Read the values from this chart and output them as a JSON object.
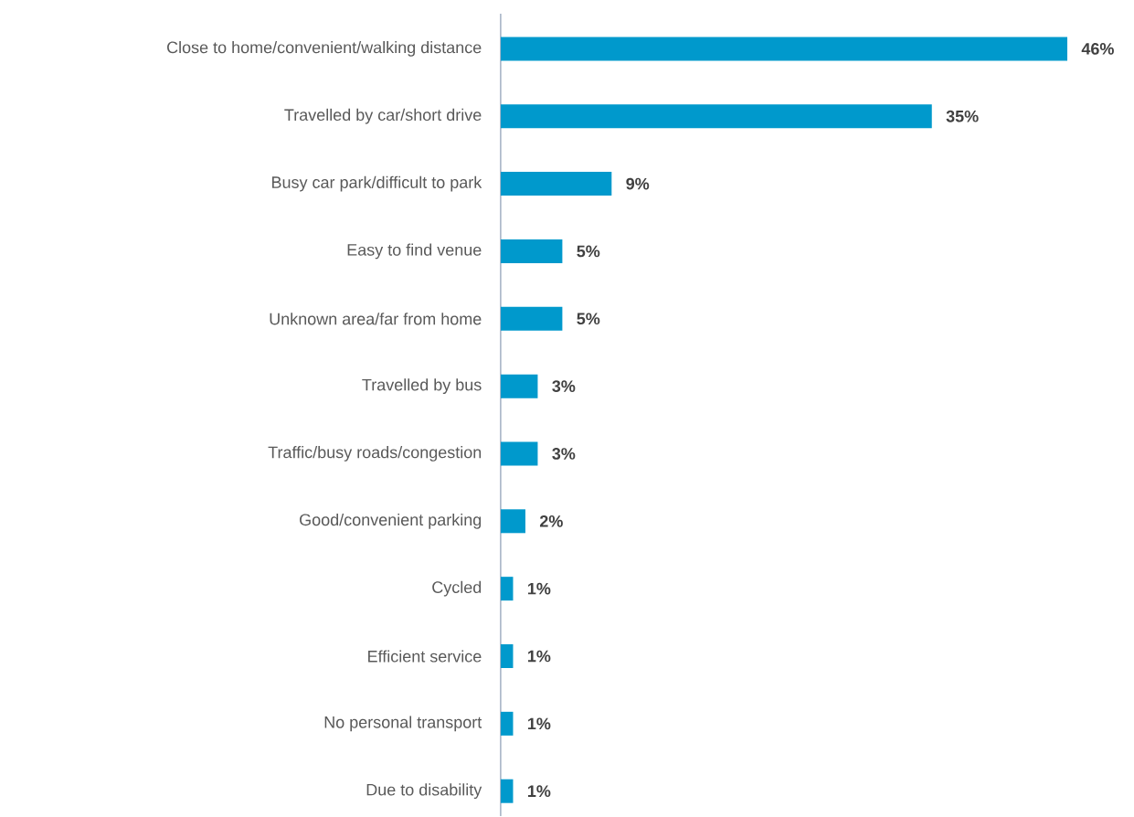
{
  "chart_data": {
    "type": "bar",
    "orientation": "horizontal",
    "categories": [
      "Close to home/convenient/walking distance",
      "Travelled by car/short drive",
      "Busy car park/difficult to park",
      "Easy to find venue",
      "Unknown area/far from home",
      "Travelled by bus",
      "Traffic/busy roads/congestion",
      "Good/convenient parking",
      "Cycled",
      "Efficient service",
      "No personal transport",
      "Due to disability"
    ],
    "values": [
      46,
      35,
      9,
      5,
      5,
      3,
      3,
      2,
      1,
      1,
      1,
      1
    ],
    "value_labels": [
      "46%",
      "35%",
      "9%",
      "5%",
      "5%",
      "3%",
      "3%",
      "2%",
      "1%",
      "1%",
      "1%",
      "1%"
    ],
    "color": "#0099cc"
  }
}
